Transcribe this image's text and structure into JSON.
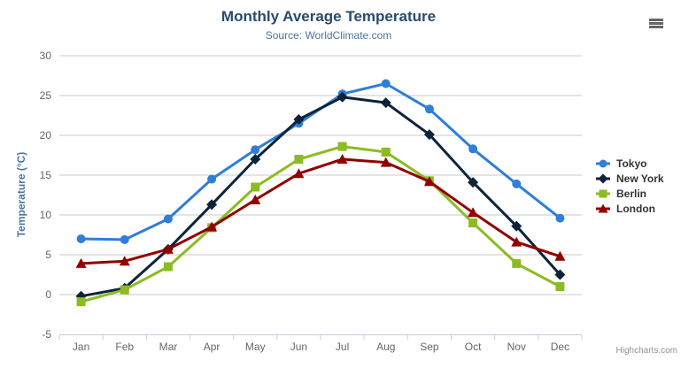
{
  "chart_data": {
    "type": "line",
    "title": "Monthly Average Temperature",
    "subtitle": "Source: WorldClimate.com",
    "xlabel": "",
    "ylabel": "Temperature (°C)",
    "categories": [
      "Jan",
      "Feb",
      "Mar",
      "Apr",
      "May",
      "Jun",
      "Jul",
      "Aug",
      "Sep",
      "Oct",
      "Nov",
      "Dec"
    ],
    "series": [
      {
        "name": "Tokyo",
        "color": "#2f7ed8",
        "marker": "circle",
        "values": [
          7.0,
          6.9,
          9.5,
          14.5,
          18.2,
          21.5,
          25.2,
          26.5,
          23.3,
          18.3,
          13.9,
          9.6
        ]
      },
      {
        "name": "New York",
        "color": "#0d233a",
        "marker": "diamond",
        "values": [
          -0.2,
          0.8,
          5.7,
          11.3,
          17.0,
          22.0,
          24.8,
          24.1,
          20.1,
          14.1,
          8.6,
          2.5
        ]
      },
      {
        "name": "Berlin",
        "color": "#8bbc21",
        "marker": "square",
        "values": [
          -0.9,
          0.6,
          3.5,
          8.4,
          13.5,
          17.0,
          18.6,
          17.9,
          14.3,
          9.0,
          3.9,
          1.0
        ]
      },
      {
        "name": "London",
        "color": "#910000",
        "marker": "triangle",
        "values": [
          3.9,
          4.2,
          5.7,
          8.5,
          11.9,
          15.2,
          17.0,
          16.6,
          14.2,
          10.3,
          6.6,
          4.8
        ]
      }
    ],
    "ylim": [
      -5,
      30
    ],
    "ytick_interval": 5,
    "grid": true,
    "legend_position": "right",
    "grid_color": "#c8c8c8",
    "axis_line_color": "#c0d0e0",
    "label_color": "#666666"
  },
  "credits": {
    "label": "Highcharts.com"
  },
  "export_menu": {
    "icon": "hamburger-icon"
  }
}
